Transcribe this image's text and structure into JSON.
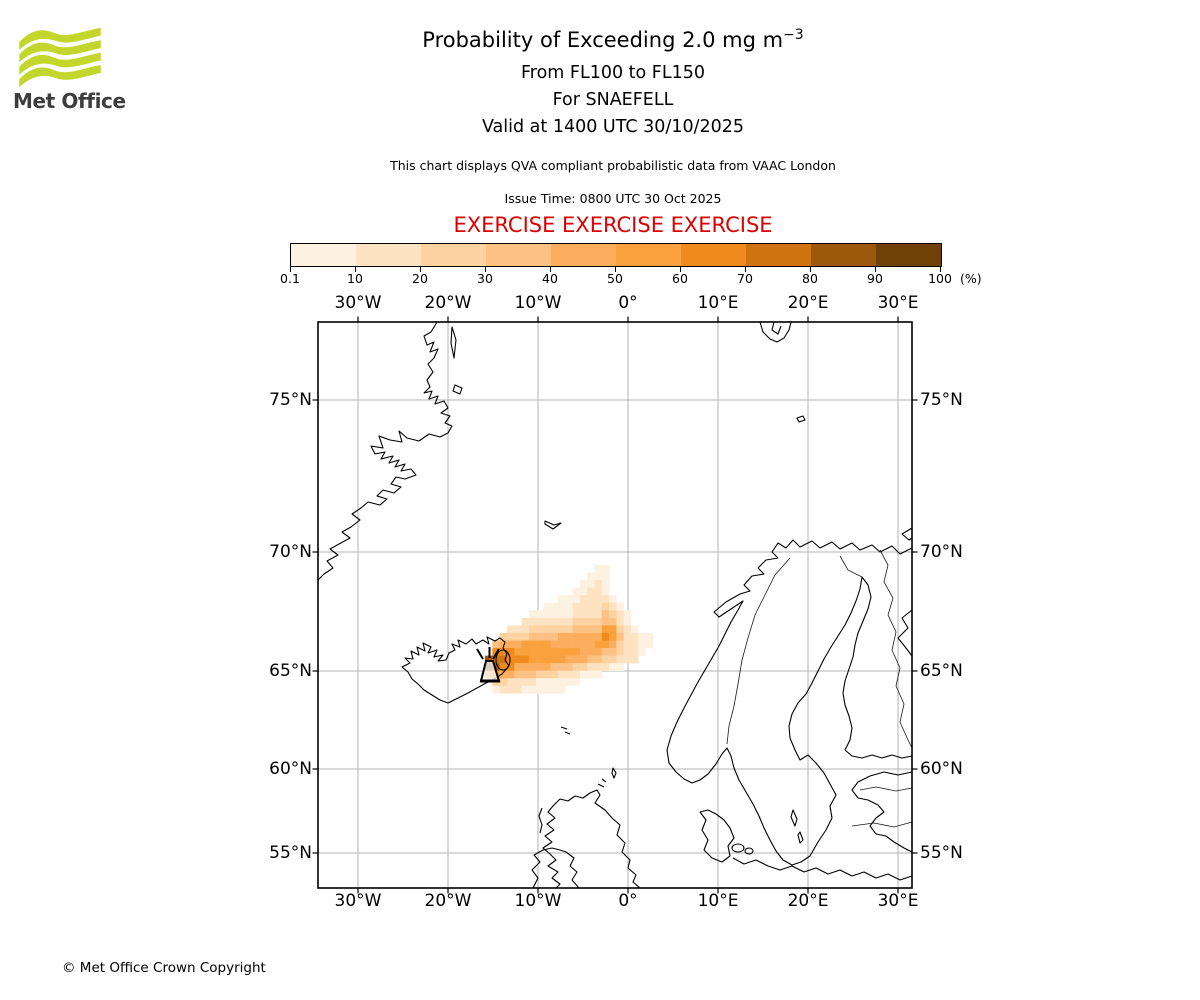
{
  "logo": {
    "brand": "Met Office",
    "wave_color": "#c3d62c",
    "text_color": "#3d3d3d"
  },
  "header": {
    "title": "Probability of Exceeding 2.0 mg m",
    "title_superscript": "−3",
    "subtitle_lines": [
      "From FL100 to FL150",
      "For SNAEFELL",
      "Valid at 1400 UTC 30/10/2025"
    ],
    "note": "This chart displays QVA compliant probabilistic data from VAAC London",
    "issue_time": "Issue Time: 0800 UTC 30 Oct 2025",
    "exercise_banner": "EXERCISE EXERCISE EXERCISE",
    "exercise_color": "#dd0000"
  },
  "colorbar": {
    "tick_labels": [
      "0.1",
      "10",
      "20",
      "30",
      "40",
      "50",
      "60",
      "70",
      "80",
      "90",
      "100"
    ],
    "unit_label": "(%)",
    "segment_colors": [
      "#fdf2e2",
      "#fde3c2",
      "#fdd3a2",
      "#fdc183",
      "#fcae5e",
      "#f9a13c",
      "#ee8b1c",
      "#cf7410",
      "#9c590c",
      "#6f4108"
    ]
  },
  "map": {
    "top_lon_labels": [
      "30°W",
      "20°W",
      "10°W",
      "0°",
      "10°E",
      "20°E",
      "30°E"
    ],
    "bottom_lon_labels": [
      "30°W",
      "20°W",
      "10°W",
      "0°",
      "10°E",
      "20°E",
      "30°E"
    ],
    "left_lat_labels": [
      "75°N",
      "70°N",
      "65°N",
      "60°N",
      "55°N"
    ],
    "right_lat_labels": [
      "75°N",
      "70°N",
      "65°N",
      "60°N",
      "55°N"
    ],
    "grid_color": "#b3b3b3"
  },
  "chart_data": {
    "type": "heatmap",
    "title": "Probability of Exceeding 2.0 mg m−3",
    "legend_percent_bins": [
      0.1,
      10,
      20,
      30,
      40,
      50,
      60,
      70,
      80,
      90,
      100
    ],
    "lon_ticks_deg": [
      -30,
      -20,
      -10,
      0,
      10,
      20,
      30
    ],
    "lat_ticks_deg": [
      75,
      70,
      65,
      60,
      55
    ],
    "palette": {
      "1": "#fdf2e2",
      "2": "#fde3c2",
      "3": "#fdd3a2",
      "4": "#fdc183",
      "5": "#fcae5e",
      "6": "#f9a13c",
      "7": "#ee8b1c",
      "8": "#cf7410",
      "9": "#9c590c",
      "a": "#6f4108"
    },
    "rows": [
      "000000000000000110000000",
      "000000000000001110000000",
      "000000000000011210000000",
      "000000000000112210000000",
      "000000000011122221000000",
      "000000001111222232100000",
      "000000111111222243210000",
      "000002222222333344210000",
      "000222333333444466321000",
      "003333444455555576422110",
      "045556666555555665322110",
      "077766666666655544322100",
      "988777666665554433222000",
      "a97755555444332221100000",
      "665544433322211100000000",
      "033222211111100000000000",
      "012221111110000000000000"
    ]
  },
  "footer": {
    "copyright": "© Met Office Crown Copyright"
  }
}
